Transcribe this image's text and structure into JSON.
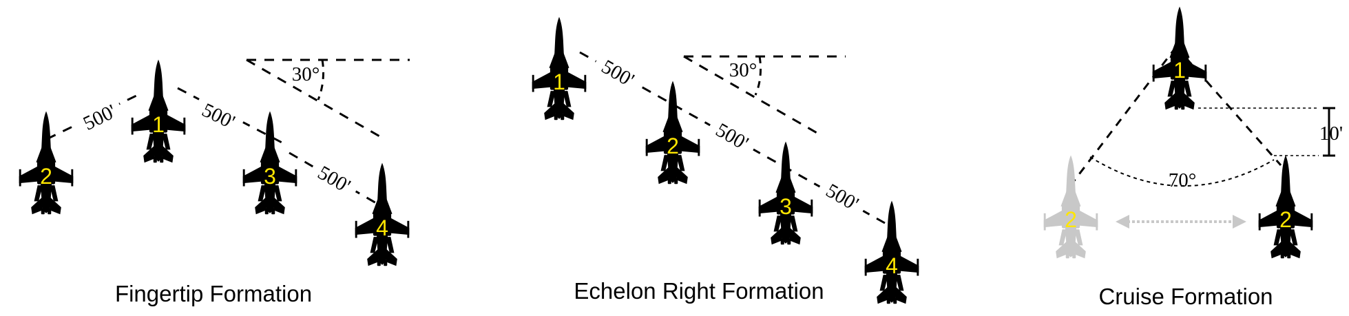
{
  "colors": {
    "jet": "#000000",
    "ghost_jet": "#c8c8c8",
    "jet_number": "#ffe600",
    "ghost_arrow": "#c8c8c8",
    "line": "#000000"
  },
  "icon": "fighter-jet-silhouette-icon",
  "fingertip": {
    "caption": "Fingertip Formation",
    "angle_label": "30°",
    "dist_1_2": "500'",
    "dist_1_3": "500'",
    "dist_3_4": "500'",
    "jets": [
      "2",
      "1",
      "3",
      "4"
    ]
  },
  "echelon": {
    "caption": "Echelon Right Formation",
    "angle_label": "30°",
    "dist_1_2": "500'",
    "dist_2_3": "500'",
    "dist_3_4": "500'",
    "jets": [
      "1",
      "2",
      "3",
      "4"
    ]
  },
  "cruise": {
    "caption": "Cruise Formation",
    "angle_label": "70°",
    "step_down": "10'",
    "jets": [
      "1",
      "2",
      "2"
    ]
  }
}
